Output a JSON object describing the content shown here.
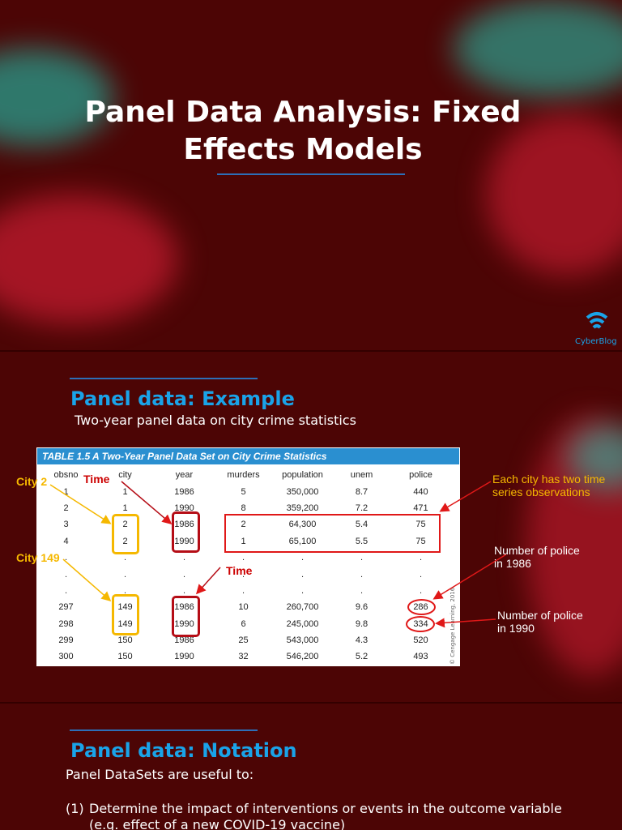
{
  "slide_1": {
    "title": "Panel Data Analysis: Fixed Effects Models",
    "logo": "CyberBlog"
  },
  "slide_2": {
    "heading": "Panel data: Example",
    "subtitle": "Two-year panel data on city crime statistics",
    "table": {
      "caption": "TABLE 1.5  A Two-Year Panel Data Set on City Crime Statistics",
      "columns": [
        "obsno",
        "city",
        "year",
        "murders",
        "population",
        "unem",
        "police"
      ],
      "rows": [
        [
          "1",
          "1",
          "1986",
          "5",
          "350,000",
          "8.7",
          "440"
        ],
        [
          "2",
          "1",
          "1990",
          "8",
          "359,200",
          "7.2",
          "471"
        ],
        [
          "3",
          "2",
          "1986",
          "2",
          "64,300",
          "5.4",
          "75"
        ],
        [
          "4",
          "2",
          "1990",
          "1",
          "65,100",
          "5.5",
          "75"
        ],
        [
          ".",
          ".",
          ".",
          ".",
          ".",
          ".",
          "."
        ],
        [
          ".",
          ".",
          ".",
          ".",
          ".",
          ".",
          "."
        ],
        [
          ".",
          ".",
          ".",
          ".",
          ".",
          ".",
          "."
        ],
        [
          "297",
          "149",
          "1986",
          "10",
          "260,700",
          "9.6",
          "286"
        ],
        [
          "298",
          "149",
          "1990",
          "6",
          "245,000",
          "9.8",
          "334"
        ],
        [
          "299",
          "150",
          "1986",
          "25",
          "543,000",
          "4.3",
          "520"
        ],
        [
          "300",
          "150",
          "1990",
          "32",
          "546,200",
          "5.2",
          "493"
        ]
      ],
      "credit": "© Cengage Learning, 2016"
    },
    "annotations": [
      "City 2",
      "Time",
      "City 149",
      "Time",
      "Each city has two time series observations",
      "Number of police in 1986",
      "Number of police in 1990"
    ]
  },
  "slide_3": {
    "heading": "Panel data: Notation",
    "intro": "Panel DataSets are useful to:",
    "items": [
      {
        "marker": "(1)",
        "text": "Determine the impact of interventions or events in the outcome variable",
        "example": "(e.g. effect of a new COVID-19 vaccine)"
      }
    ]
  }
}
